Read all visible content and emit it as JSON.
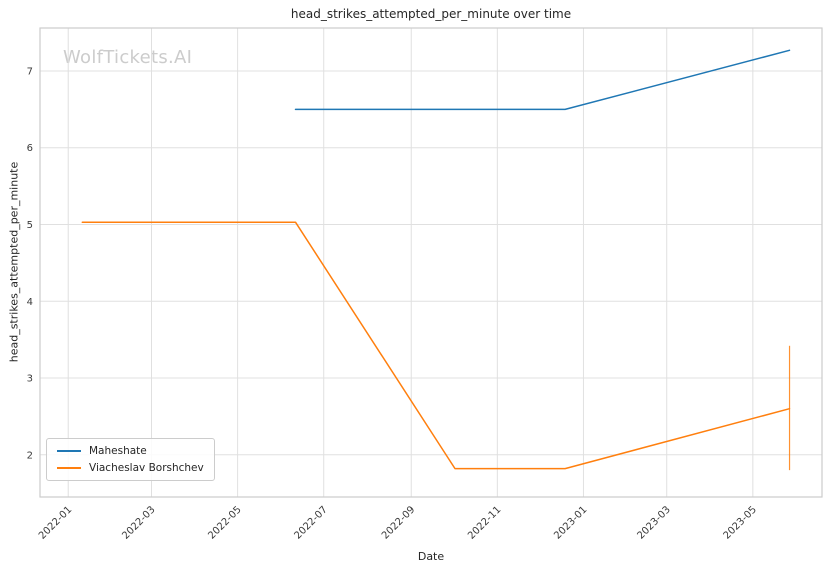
{
  "watermark": "WolfTickets.AI",
  "chart_data": {
    "type": "line",
    "title": "head_strikes_attempted_per_minute over time",
    "xlabel": "Date",
    "ylabel": "head_strikes_attempted_per_minute",
    "x_tick_labels": [
      "2022-01",
      "2022-03",
      "2022-05",
      "2022-07",
      "2022-09",
      "2022-11",
      "2023-01",
      "2023-03",
      "2023-05"
    ],
    "y_tick_labels": [
      2,
      3,
      4,
      5,
      6,
      7
    ],
    "xlim_days_from_2022_01_01": [
      -20,
      534
    ],
    "ylim": [
      1.45,
      7.56
    ],
    "grid": true,
    "legend_position": "lower left",
    "series": [
      {
        "name": "Maheshate",
        "color": "#1f77b4",
        "points": [
          [
            "2022-06-11",
            6.5
          ],
          [
            "2022-12-19",
            6.5
          ],
          [
            "2023-05-27",
            7.27
          ]
        ]
      },
      {
        "name": "Viacheslav Borshchev",
        "color": "#ff7f0e",
        "points": [
          [
            "2022-01-11",
            5.03
          ],
          [
            "2022-06-11",
            5.03
          ],
          [
            "2022-10-02",
            1.82
          ],
          [
            "2022-12-19",
            1.82
          ],
          [
            "2023-05-27",
            2.6
          ]
        ],
        "error_bar": {
          "x": "2023-05-27",
          "y_low": 1.8,
          "y_high": 3.42
        }
      }
    ]
  }
}
